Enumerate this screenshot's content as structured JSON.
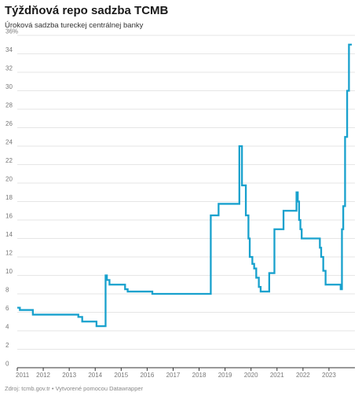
{
  "title": "Týždňová repo sadzba TCMB",
  "subtitle": "Úroková sadzba tureckej centrálnej banky",
  "footer": "Zdroj: tcmb.gov.tr • Vytvorené pomocou Datawrapper",
  "colors": {
    "line": "#18a1cd",
    "grid": "#e6e6e6",
    "axis": "#333333"
  },
  "chart_data": {
    "type": "line",
    "title": "Týždňová repo sadzba TCMB",
    "subtitle": "Úroková sadzba tureckej centrálnej banky",
    "xlabel": "",
    "ylabel": "",
    "xlim": [
      2011.0,
      2024.0
    ],
    "ylim": [
      0,
      36
    ],
    "grid": true,
    "x_ticks": [
      "2011",
      "2012",
      "2013",
      "2014",
      "2015",
      "2016",
      "2017",
      "2018",
      "2019",
      "2020",
      "2021",
      "2022",
      "2023"
    ],
    "y_ticks": [
      "0",
      "2",
      "4",
      "6",
      "8",
      "10",
      "12",
      "14",
      "16",
      "18",
      "20",
      "22",
      "24",
      "26",
      "28",
      "30",
      "32",
      "34",
      "36%"
    ],
    "series": [
      {
        "name": "",
        "x": [
          2011.0,
          2011.1,
          2011.6,
          2013.35,
          2013.5,
          2014.05,
          2014.4,
          2014.45,
          2014.55,
          2015.15,
          2015.25,
          2016.2,
          2016.3,
          2016.5,
          2016.6,
          2016.7,
          2016.9,
          2017.9,
          2018.4,
          2018.45,
          2018.75,
          2019.55,
          2019.65,
          2019.8,
          2019.9,
          2019.95,
          2020.05,
          2020.12,
          2020.2,
          2020.3,
          2020.37,
          2020.7,
          2020.9,
          2021.25,
          2021.75,
          2021.8,
          2021.85,
          2021.9,
          2021.95,
          2022.65,
          2022.7,
          2022.78,
          2022.87,
          2023.45,
          2023.5,
          2023.55,
          2023.62,
          2023.7,
          2023.77,
          2023.88
        ],
        "y": [
          6.5,
          6.25,
          5.75,
          5.5,
          5.0,
          4.5,
          10.0,
          9.5,
          9.0,
          8.5,
          8.25,
          8.0,
          8.0,
          8.0,
          8.0,
          8.0,
          8.0,
          8.0,
          8.0,
          16.5,
          17.75,
          24.0,
          19.75,
          16.5,
          14.0,
          12.0,
          11.25,
          10.75,
          9.75,
          8.75,
          8.25,
          10.25,
          15.0,
          17.0,
          19.0,
          18.0,
          16.0,
          15.0,
          14.0,
          13.0,
          12.0,
          10.5,
          9.0,
          8.5,
          15.0,
          17.5,
          25.0,
          30.0,
          35.0,
          35.0
        ]
      }
    ]
  }
}
